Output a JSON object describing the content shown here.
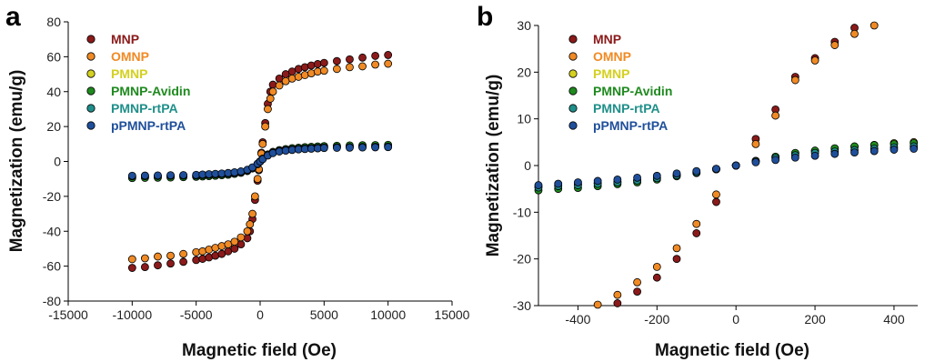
{
  "chart_data": [
    {
      "panel_label": "a",
      "type": "scatter",
      "xlabel": "Magnetic field (Oe)",
      "ylabel": "Magnetization (emu/g)",
      "xlim": [
        -15000,
        15000
      ],
      "ylim": [
        -80,
        80
      ],
      "xticks": [
        "-15000",
        "-10000",
        "-5000",
        "0",
        "5000",
        "10000",
        "15000"
      ],
      "yticks": [
        "-80",
        "-60",
        "-40",
        "-20",
        "0",
        "20",
        "40",
        "60",
        "80"
      ],
      "grid": false,
      "legend_position": "top-left",
      "series": [
        {
          "name": "MNP",
          "color": "#8b1a1a",
          "x": [
            -10000,
            -9000,
            -8000,
            -7000,
            -6000,
            -5000,
            -4500,
            -4000,
            -3500,
            -3000,
            -2500,
            -2000,
            -1500,
            -1000,
            -800,
            -600,
            -400,
            -200,
            -100,
            0,
            100,
            200,
            400,
            600,
            800,
            1000,
            1500,
            2000,
            2500,
            3000,
            3500,
            4000,
            4500,
            5000,
            6000,
            7000,
            8000,
            9000,
            10000
          ],
          "y": [
            -61,
            -60.5,
            -59.5,
            -58.5,
            -57.5,
            -56.5,
            -55.8,
            -55,
            -54,
            -53,
            -51.5,
            -50,
            -47.5,
            -44,
            -40,
            -33,
            -22,
            -11,
            -5,
            0,
            5,
            11,
            22,
            33,
            40,
            44,
            47.5,
            50,
            51.5,
            53,
            54,
            55,
            55.8,
            56.5,
            57.5,
            58.5,
            59.5,
            60.5,
            61
          ]
        },
        {
          "name": "OMNP",
          "color": "#f08a24",
          "x": [
            -10000,
            -9000,
            -8000,
            -7000,
            -6000,
            -5000,
            -4500,
            -4000,
            -3500,
            -3000,
            -2500,
            -2000,
            -1500,
            -1000,
            -800,
            -600,
            -400,
            -200,
            -100,
            0,
            100,
            200,
            400,
            600,
            800,
            1000,
            1500,
            2000,
            2500,
            3000,
            3500,
            4000,
            4500,
            5000,
            6000,
            7000,
            8000,
            9000,
            10000
          ],
          "y": [
            -56,
            -55.5,
            -54.5,
            -54,
            -53,
            -52,
            -51.5,
            -50.5,
            -49.5,
            -48.5,
            -47.5,
            -46,
            -43.5,
            -40,
            -36,
            -30,
            -20,
            -10,
            -4.5,
            0,
            4.5,
            10,
            20,
            30,
            36,
            40,
            43.5,
            46,
            47.5,
            48.5,
            49.5,
            50.5,
            51.5,
            52,
            53,
            54,
            54.5,
            55.5,
            56
          ]
        },
        {
          "name": "PMNP",
          "color": "#d4d020",
          "x": [
            -10000,
            -9000,
            -8000,
            -7000,
            -6000,
            -5000,
            -4500,
            -4000,
            -3500,
            -3000,
            -2500,
            -2000,
            -1500,
            -1000,
            -600,
            -200,
            0,
            200,
            600,
            1000,
            1500,
            2000,
            2500,
            3000,
            3500,
            4000,
            4500,
            5000,
            6000,
            7000,
            8000,
            9000,
            10000
          ],
          "y": [
            -9,
            -9,
            -8.8,
            -8.7,
            -8.6,
            -8.5,
            -8.3,
            -8.1,
            -7.9,
            -7.6,
            -7.3,
            -6.8,
            -6.2,
            -5.2,
            -3.8,
            -1.5,
            0,
            1.5,
            3.8,
            5.2,
            6.2,
            6.8,
            7.3,
            7.6,
            7.9,
            8.1,
            8.3,
            8.5,
            8.6,
            8.7,
            8.8,
            9,
            9
          ]
        },
        {
          "name": "PMNP-Avidin",
          "color": "#1f8a1f",
          "x": [
            -10000,
            -9000,
            -8000,
            -7000,
            -6000,
            -5000,
            -4500,
            -4000,
            -3500,
            -3000,
            -2500,
            -2000,
            -1500,
            -1000,
            -600,
            -200,
            0,
            200,
            600,
            1000,
            1500,
            2000,
            2500,
            3000,
            3500,
            4000,
            4500,
            5000,
            6000,
            7000,
            8000,
            9000,
            10000
          ],
          "y": [
            -9.5,
            -9.4,
            -9.3,
            -9.2,
            -9,
            -8.8,
            -8.6,
            -8.4,
            -8.2,
            -7.9,
            -7.6,
            -7.1,
            -6.5,
            -5.5,
            -4,
            -1.6,
            0,
            1.6,
            4,
            5.5,
            6.5,
            7.1,
            7.6,
            7.9,
            8.2,
            8.4,
            8.6,
            8.8,
            9,
            9.2,
            9.3,
            9.4,
            9.5
          ]
        },
        {
          "name": "PMNP-rtPA",
          "color": "#1f8f8a",
          "x": [
            -10000,
            -9000,
            -8000,
            -7000,
            -6000,
            -5000,
            -4500,
            -4000,
            -3500,
            -3000,
            -2500,
            -2000,
            -1500,
            -1000,
            -600,
            -200,
            0,
            200,
            600,
            1000,
            1500,
            2000,
            2500,
            3000,
            3500,
            4000,
            4500,
            5000,
            6000,
            7000,
            8000,
            9000,
            10000
          ],
          "y": [
            -8.5,
            -8.4,
            -8.3,
            -8.2,
            -8.1,
            -8,
            -7.8,
            -7.6,
            -7.4,
            -7.2,
            -6.9,
            -6.5,
            -6,
            -5,
            -3.6,
            -1.4,
            0,
            1.4,
            3.6,
            5,
            6,
            6.5,
            6.9,
            7.2,
            7.4,
            7.6,
            7.8,
            8,
            8.1,
            8.2,
            8.3,
            8.4,
            8.5
          ]
        },
        {
          "name": "pPMNP-rtPA",
          "color": "#1f4f9a",
          "x": [
            -10000,
            -9000,
            -8000,
            -7000,
            -6000,
            -5000,
            -4500,
            -4000,
            -3500,
            -3000,
            -2500,
            -2000,
            -1500,
            -1000,
            -600,
            -200,
            0,
            200,
            600,
            1000,
            1500,
            2000,
            2500,
            3000,
            3500,
            4000,
            4500,
            5000,
            6000,
            7000,
            8000,
            9000,
            10000
          ],
          "y": [
            -8.2,
            -8.1,
            -8,
            -7.9,
            -7.8,
            -7.7,
            -7.5,
            -7.3,
            -7.1,
            -6.9,
            -6.6,
            -6.2,
            -5.7,
            -4.8,
            -3.4,
            -1.3,
            0,
            1.3,
            3.4,
            4.8,
            5.7,
            6.2,
            6.6,
            6.9,
            7.1,
            7.3,
            7.5,
            7.7,
            7.8,
            7.9,
            8,
            8.1,
            8.2
          ]
        }
      ]
    },
    {
      "panel_label": "b",
      "type": "scatter",
      "xlabel": "Magnetic field (Oe)",
      "ylabel": "Magnetization (emu/g)",
      "xlim": [
        -500,
        460
      ],
      "ylim": [
        -30,
        30
      ],
      "xticks": [
        "-400",
        "-200",
        "0",
        "200",
        "400"
      ],
      "yticks": [
        "-30",
        "-20",
        "-10",
        "0",
        "10",
        "20",
        "30"
      ],
      "grid": false,
      "legend_position": "top-left",
      "series": [
        {
          "name": "MNP",
          "color": "#8b1a1a",
          "x": [
            -300,
            -250,
            -200,
            -150,
            -100,
            -50,
            0,
            50,
            100,
            150,
            200,
            250,
            300
          ],
          "y": [
            -29.5,
            -27,
            -24,
            -20,
            -14.5,
            -7.8,
            0,
            5.7,
            12,
            19,
            23,
            26.5,
            29.5
          ]
        },
        {
          "name": "OMNP",
          "color": "#f08a24",
          "x": [
            -350,
            -300,
            -250,
            -200,
            -150,
            -100,
            -50,
            0,
            50,
            100,
            150,
            200,
            250,
            300,
            350
          ],
          "y": [
            -29.8,
            -27.7,
            -25,
            -21.7,
            -17.7,
            -12.5,
            -6.2,
            0,
            4.6,
            10.7,
            18.3,
            22.5,
            25.8,
            28.2,
            30
          ]
        },
        {
          "name": "PMNP",
          "color": "#d4d020",
          "x": [
            -500,
            -450,
            -400,
            -350,
            -300,
            -250,
            -200,
            -150,
            -100,
            -50,
            0,
            50,
            100,
            150,
            200,
            250,
            300,
            350,
            400,
            450
          ],
          "y": [
            -4.5,
            -4.2,
            -4,
            -3.8,
            -3.5,
            -3.2,
            -2.6,
            -2,
            -1.4,
            -0.7,
            0,
            1,
            1.8,
            2.6,
            3.1,
            3.5,
            4,
            4.4,
            4.8,
            5
          ]
        },
        {
          "name": "PMNP-Avidin",
          "color": "#1f8a1f",
          "x": [
            -500,
            -450,
            -400,
            -350,
            -300,
            -250,
            -200,
            -150,
            -100,
            -50,
            0,
            50,
            100,
            150,
            200,
            250,
            300,
            350,
            400,
            450
          ],
          "y": [
            -5.3,
            -5,
            -4.8,
            -4.4,
            -4,
            -3.6,
            -3,
            -2.3,
            -1.6,
            -0.8,
            0,
            1,
            1.9,
            2.7,
            3.2,
            3.7,
            4.1,
            4.4,
            4.6,
            4.8
          ]
        },
        {
          "name": "PMNP-rtPA",
          "color": "#1f8f8a",
          "x": [
            -500,
            -450,
            -400,
            -350,
            -300,
            -250,
            -200,
            -150,
            -100,
            -50,
            0,
            50,
            100,
            150,
            200,
            250,
            300,
            350,
            400,
            450
          ],
          "y": [
            -4.7,
            -4.4,
            -4.2,
            -3.9,
            -3.6,
            -3.2,
            -2.7,
            -2.1,
            -1.5,
            -0.8,
            0,
            0.9,
            1.6,
            2.2,
            2.7,
            3,
            3.3,
            3.6,
            3.9,
            4.1
          ]
        },
        {
          "name": "pPMNP-rtPA",
          "color": "#1f4f9a",
          "x": [
            -500,
            -450,
            -400,
            -350,
            -300,
            -250,
            -200,
            -150,
            -100,
            -50,
            0,
            50,
            100,
            150,
            200,
            250,
            300,
            350,
            400,
            450
          ],
          "y": [
            -4.2,
            -3.9,
            -3.6,
            -3.3,
            -3,
            -2.6,
            -2.2,
            -1.7,
            -1.2,
            -0.7,
            0,
            0.7,
            1.2,
            1.7,
            2.1,
            2.5,
            2.8,
            3.1,
            3.4,
            3.6
          ]
        }
      ]
    }
  ]
}
